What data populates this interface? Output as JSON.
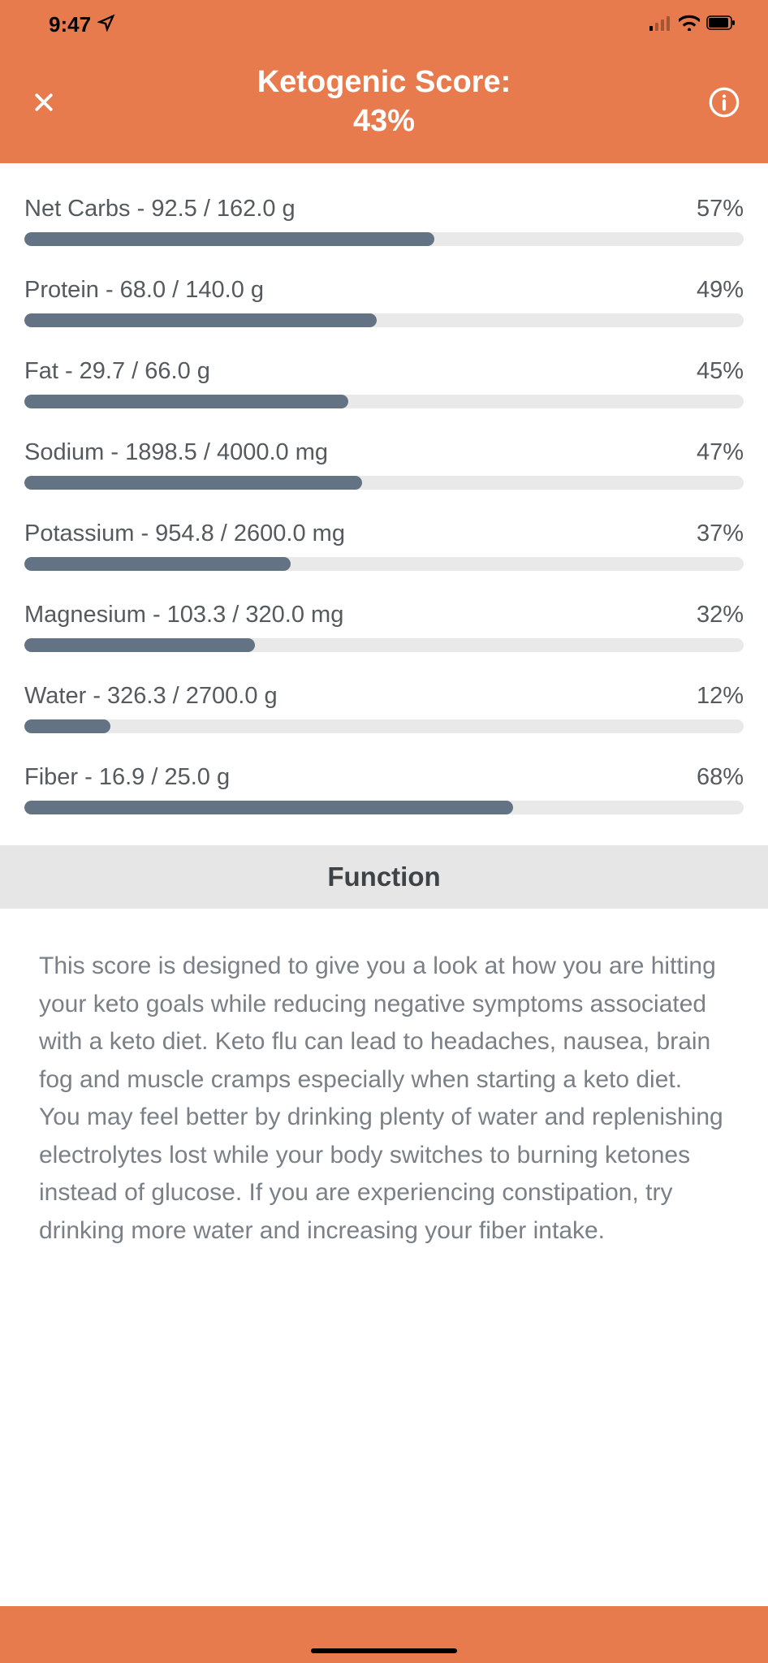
{
  "colors": {
    "accent": "#e87b4e",
    "bar_fill": "#637383",
    "bar_track": "#e9e9e9",
    "text_dark": "#555a5e",
    "text_body": "#7a8086",
    "section_bg": "#e6e6e6"
  },
  "status": {
    "time": "9:47"
  },
  "header": {
    "title_line1": "Ketogenic Score:",
    "title_line2": "43%"
  },
  "nutrients": [
    {
      "label": "Net Carbs - 92.5 / 162.0 g",
      "percent_text": "57%",
      "percent": 57
    },
    {
      "label": "Protein - 68.0 / 140.0 g",
      "percent_text": "49%",
      "percent": 49
    },
    {
      "label": "Fat - 29.7 / 66.0 g",
      "percent_text": "45%",
      "percent": 45
    },
    {
      "label": "Sodium - 1898.5 / 4000.0 mg",
      "percent_text": "47%",
      "percent": 47
    },
    {
      "label": "Potassium - 954.8 / 2600.0 mg",
      "percent_text": "37%",
      "percent": 37
    },
    {
      "label": "Magnesium - 103.3 / 320.0 mg",
      "percent_text": "32%",
      "percent": 32
    },
    {
      "label": "Water - 326.3 / 2700.0 g",
      "percent_text": "12%",
      "percent": 12
    },
    {
      "label": "Fiber - 16.9 / 25.0 g",
      "percent_text": "68%",
      "percent": 68
    }
  ],
  "section": {
    "title": "Function",
    "body": "This score is designed to give you a look at how you are hitting your keto goals while reducing negative symptoms associated with a keto diet. Keto flu can lead to headaches, nausea, brain fog and muscle cramps especially when starting a keto diet. You may feel better by drinking plenty of water and replenishing electrolytes lost while your body switches to burning ketones instead of glucose. If you are experiencing constipation, try drinking more water and increasing your fiber intake."
  }
}
